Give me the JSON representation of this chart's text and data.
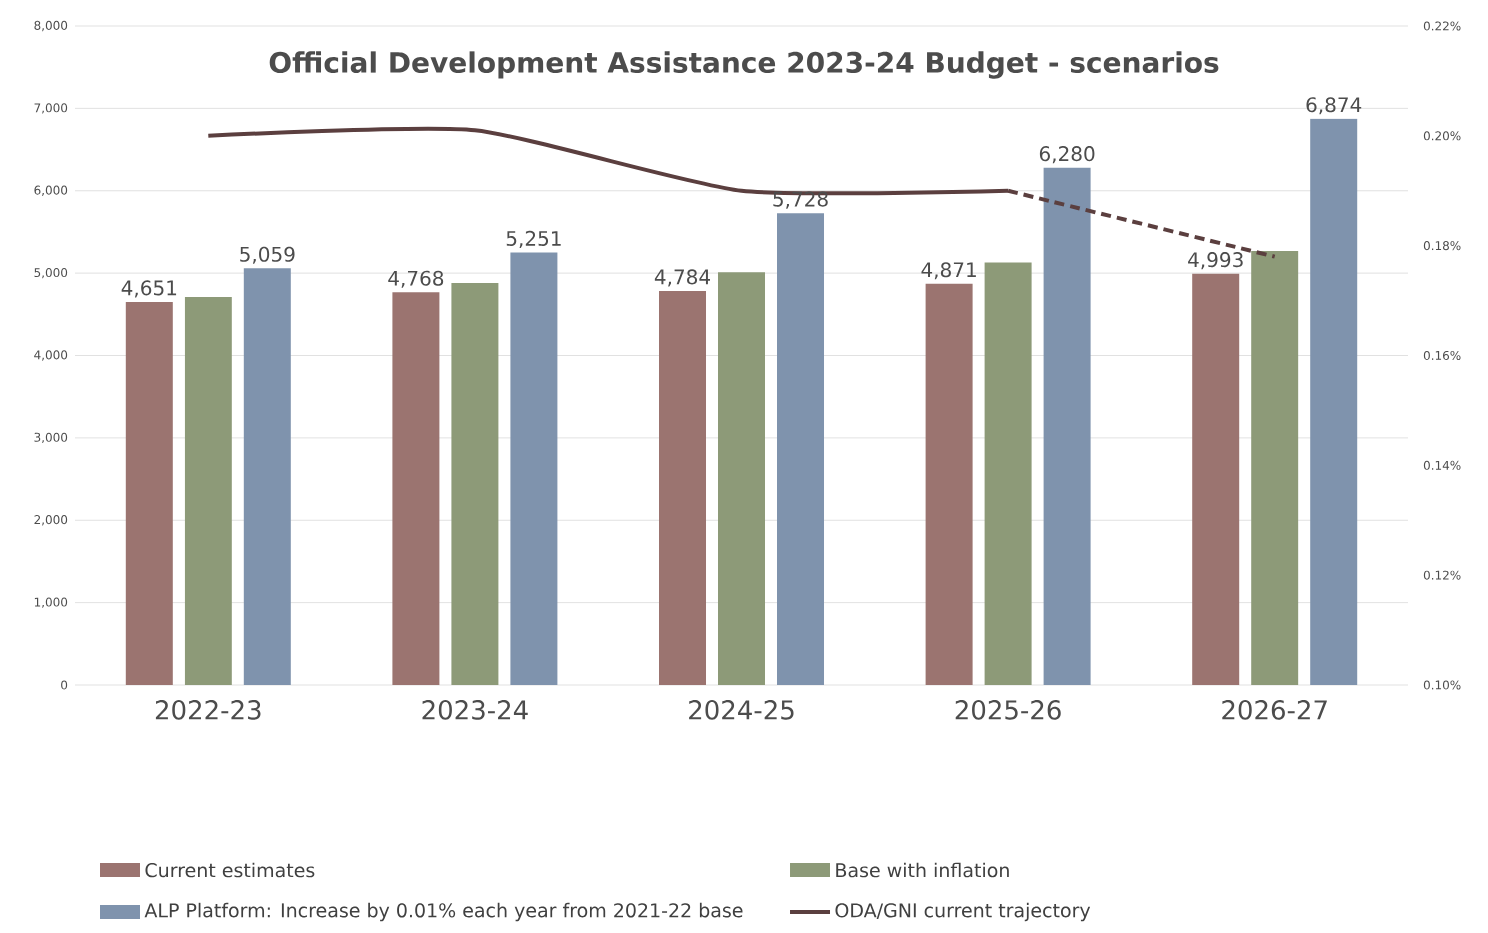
{
  "chart_data": {
    "type": "bar",
    "title": "Official Development Assistance 2023-24 Budget - scenarios",
    "categories": [
      "2022-23",
      "2023-24",
      "2024-25",
      "2025-26",
      "2026-27"
    ],
    "series": [
      {
        "name": "Current estimates",
        "color": "#9b7470",
        "values": [
          4651,
          4768,
          4784,
          4871,
          4993
        ],
        "value_labels": [
          "4,651",
          "4,768",
          "4,784",
          "4,871",
          "4,993"
        ]
      },
      {
        "name": "Base with inflation",
        "color": "#8d9a78",
        "values": [
          4710,
          4880,
          5010,
          5130,
          5270
        ]
      },
      {
        "name": "ALP Platform: Increase by 0.01% each year from 2021-22 base",
        "color": "#7f93ad",
        "values": [
          5059,
          5251,
          5728,
          6280,
          6874
        ],
        "value_labels": [
          "5,059",
          "5,251",
          "5,728",
          "6,280",
          "6,874"
        ]
      },
      {
        "name": "ODA/GNI current trajectory",
        "type": "line",
        "axis": "y2",
        "color": "#5b3f3f",
        "line_style": "solid",
        "values": [
          0.2,
          0.201,
          0.19,
          0.19,
          null
        ]
      },
      {
        "type": "line",
        "axis": "y2",
        "color": "#5b3f3f",
        "line_style": "dashed",
        "values": [
          null,
          null,
          null,
          0.19,
          0.178
        ]
      }
    ],
    "ylim": [
      0,
      8000
    ],
    "yticks": [
      0,
      {
        "value": 1000,
        "label": "1,000"
      },
      {
        "value": 2000,
        "label": "2,000"
      },
      {
        "value": 3000,
        "label": "3,000"
      },
      {
        "value": 4000,
        "label": "4,000"
      },
      {
        "value": 5000,
        "label": "5,000"
      },
      {
        "value": 6000,
        "label": "6,000"
      },
      {
        "value": 7000,
        "label": "7,000"
      },
      {
        "value": 8000,
        "label": "8,000"
      }
    ],
    "y2lim": [
      0.1,
      0.22
    ],
    "y2ticks": [
      {
        "value": 0.1,
        "label": "0.10%"
      },
      {
        "value": 0.12,
        "label": "0.12%"
      },
      {
        "value": 0.14,
        "label": "0.14%"
      },
      {
        "value": 0.16,
        "label": "0.16%"
      },
      {
        "value": 0.18,
        "label": "0.18%"
      },
      {
        "value": 0.2,
        "label": "0.20%"
      },
      {
        "value": 0.22,
        "label": "0.22%"
      }
    ],
    "grid": "y",
    "legend": "bottom"
  }
}
